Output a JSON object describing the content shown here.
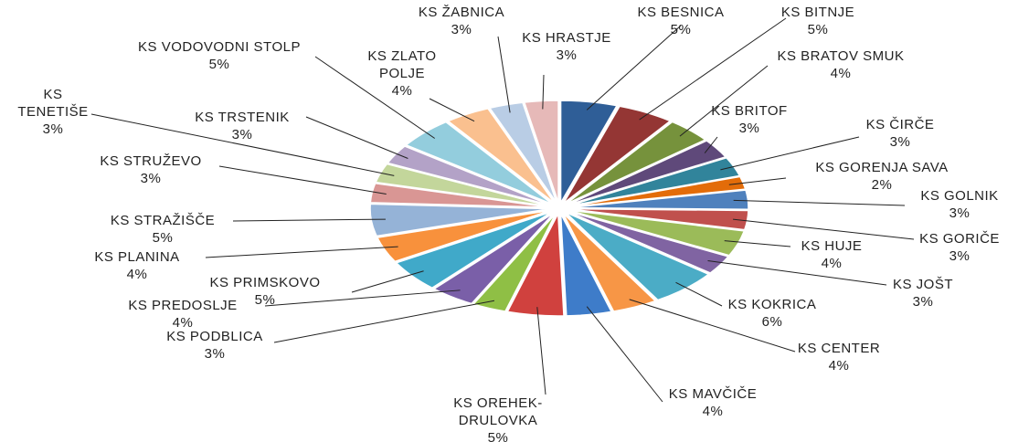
{
  "chart_data": {
    "type": "pie",
    "categories": [
      "KS BESNICA",
      "KS BITNJE",
      "KS BRATOV SMUK",
      "KS BRITOF",
      "KS ČIRČE",
      "KS GORENJA SAVA",
      "KS GOLNIK",
      "KS GORIČE",
      "KS HUJE",
      "KS JOŠT",
      "KS KOKRICA",
      "KS CENTER",
      "KS MAVČIČE",
      "KS OREHEK-DRULOVKA",
      "KS PODBLICA",
      "KS PREDOSLJE",
      "KS PRIMSKOVO",
      "KS PLANINA",
      "KS STRAŽIŠČE",
      "KS STRUŽEVO",
      "KS TENETIŠE",
      "KS TRSTENIK",
      "KS VODOVODNI STOLP",
      "KS ZLATO POLJE",
      "KS ŽABNICA",
      "KS HRASTJE"
    ],
    "values": [
      5,
      5,
      4,
      3,
      3,
      2,
      3,
      3,
      4,
      3,
      6,
      4,
      4,
      5,
      3,
      4,
      5,
      4,
      5,
      3,
      3,
      3,
      5,
      4,
      3,
      3
    ],
    "value_labels": [
      "5%",
      "5%",
      "4%",
      "3%",
      "3%",
      "2%",
      "3%",
      "3%",
      "4%",
      "3%",
      "6%",
      "4%",
      "4%",
      "5%",
      "3%",
      "4%",
      "5%",
      "4%",
      "5%",
      "3%",
      "3%",
      "3%",
      "5%",
      "4%",
      "3%",
      "3%"
    ],
    "colors": [
      "#2f5e97",
      "#943634",
      "#76923c",
      "#5f497a",
      "#31849b",
      "#e36c09",
      "#4f81bd",
      "#c0504d",
      "#9bbb59",
      "#8064a2",
      "#4bacc6",
      "#f79646",
      "#3e7cc9",
      "#d0413e",
      "#8fbf45",
      "#7a5fa8",
      "#40a9c9",
      "#f8913c",
      "#95b3d7",
      "#d99694",
      "#c3d69b",
      "#b3a2c7",
      "#93cddd",
      "#fac08f",
      "#b9cde5",
      "#e6b9b8"
    ]
  }
}
